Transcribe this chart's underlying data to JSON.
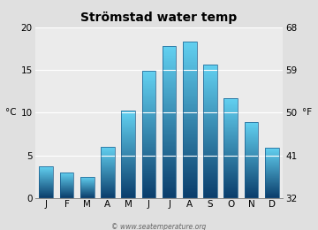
{
  "title": "Strömstad water temp",
  "months": [
    "J",
    "F",
    "M",
    "A",
    "M",
    "J",
    "J",
    "A",
    "S",
    "O",
    "N",
    "D"
  ],
  "temps_c": [
    3.7,
    3.0,
    2.5,
    6.0,
    10.2,
    14.9,
    17.8,
    18.4,
    15.7,
    11.7,
    8.9,
    5.9
  ],
  "ylim_c": [
    0,
    20
  ],
  "yticks_c": [
    0,
    5,
    10,
    15,
    20
  ],
  "yticks_f": [
    32,
    41,
    50,
    59,
    68
  ],
  "ylabel_left": "°C",
  "ylabel_right": "°F",
  "bar_color_bottom": "#0a3d6b",
  "bar_color_top": "#62d0f0",
  "bar_edge_color": "#1a5a8a",
  "bg_color": "#e0e0e0",
  "plot_bg_color": "#ebebeb",
  "grid_color": "#ffffff",
  "title_fontsize": 10,
  "axis_fontsize": 7.5,
  "tick_fontsize": 7.5,
  "watermark": "© www.seatemperature.org",
  "watermark_fontsize": 5.5
}
